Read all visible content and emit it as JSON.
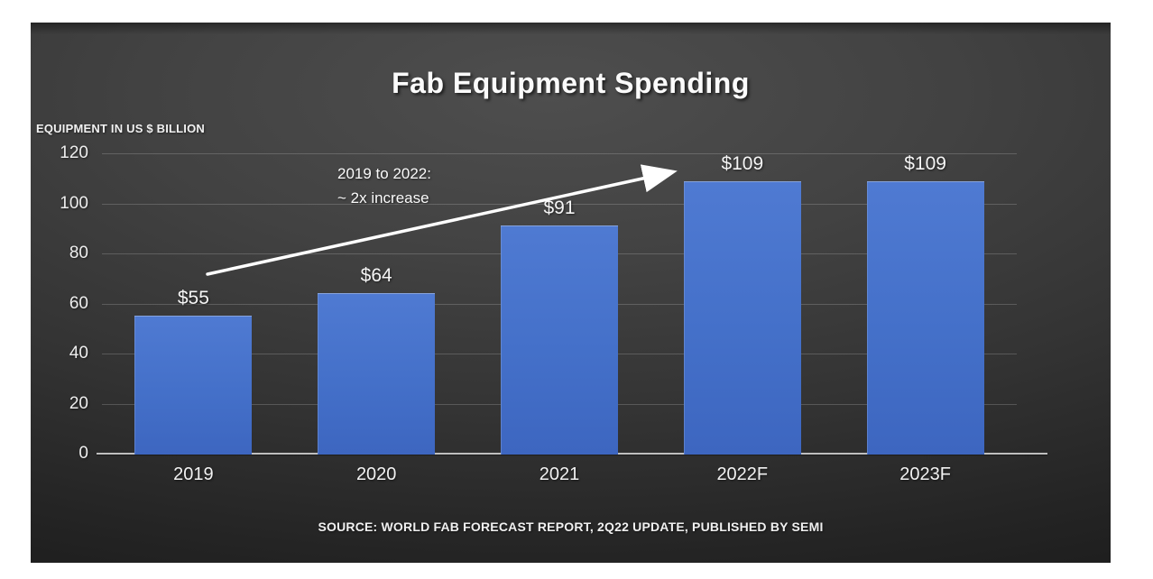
{
  "title": "Fab Equipment Spending",
  "axis_title": "EQUIPMENT IN US $ BILLION",
  "annotation": {
    "line1": "2019 to 2022:",
    "line2": "~ 2x increase"
  },
  "source": "SOURCE: WORLD FAB FORECAST REPORT, 2Q22 UPDATE, PUBLISHED BY SEMI",
  "colors": {
    "bar_top": "#4f7ad2",
    "bar_mid": "#4470c9",
    "bar_bottom": "#3d66c0",
    "slide_center": "#4e4e4e",
    "slide_edge": "#1e1e1e",
    "text": "#f2f2f2",
    "gridline": "rgba(255,255,255,0.18)",
    "axis_line": "#bfbfbf",
    "arrow": "#ffffff"
  },
  "chart_data": {
    "type": "bar",
    "title": "Fab Equipment Spending",
    "categories": [
      "2019",
      "2020",
      "2021",
      "2022F",
      "2023F"
    ],
    "values": [
      55,
      64,
      91,
      109,
      109
    ],
    "data_labels": [
      "$55",
      "$64",
      "$91",
      "$109",
      "$109"
    ],
    "xlabel": "",
    "ylabel": "EQUIPMENT IN US $ BILLION",
    "ylim": [
      0,
      120
    ],
    "yticks": [
      0,
      20,
      40,
      60,
      80,
      100,
      120
    ],
    "grid": true,
    "legend": false,
    "annotation": "2019 to 2022: ~ 2x increase",
    "source": "SOURCE: WORLD FAB FORECAST REPORT, 2Q22 UPDATE, PUBLISHED BY SEMI"
  }
}
